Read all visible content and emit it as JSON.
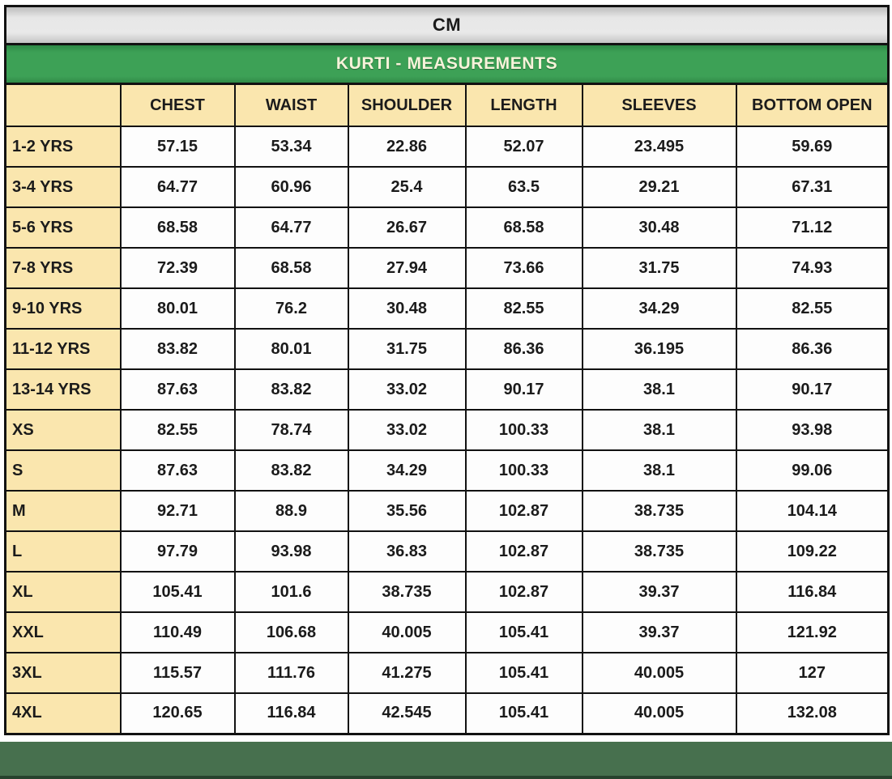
{
  "page": {
    "unit_label": "CM",
    "title": "KURTI - MEASUREMENTS"
  },
  "table": {
    "columns": [
      "",
      "CHEST",
      "WAIST",
      "SHOULDER",
      "LENGTH",
      "SLEEVES",
      "BOTTOM OPEN"
    ],
    "rows": [
      {
        "label": "1-2 YRS",
        "values": [
          "57.15",
          "53.34",
          "22.86",
          "52.07",
          "23.495",
          "59.69"
        ]
      },
      {
        "label": "3-4 YRS",
        "values": [
          "64.77",
          "60.96",
          "25.4",
          "63.5",
          "29.21",
          "67.31"
        ]
      },
      {
        "label": "5-6 YRS",
        "values": [
          "68.58",
          "64.77",
          "26.67",
          "68.58",
          "30.48",
          "71.12"
        ]
      },
      {
        "label": "7-8 YRS",
        "values": [
          "72.39",
          "68.58",
          "27.94",
          "73.66",
          "31.75",
          "74.93"
        ]
      },
      {
        "label": "9-10 YRS",
        "values": [
          "80.01",
          "76.2",
          "30.48",
          "82.55",
          "34.29",
          "82.55"
        ]
      },
      {
        "label": "11-12 YRS",
        "values": [
          "83.82",
          "80.01",
          "31.75",
          "86.36",
          "36.195",
          "86.36"
        ]
      },
      {
        "label": "13-14 YRS",
        "values": [
          "87.63",
          "83.82",
          "33.02",
          "90.17",
          "38.1",
          "90.17"
        ]
      },
      {
        "label": "XS",
        "values": [
          "82.55",
          "78.74",
          "33.02",
          "100.33",
          "38.1",
          "93.98"
        ]
      },
      {
        "label": "S",
        "values": [
          "87.63",
          "83.82",
          "34.29",
          "100.33",
          "38.1",
          "99.06"
        ]
      },
      {
        "label": "M",
        "values": [
          "92.71",
          "88.9",
          "35.56",
          "102.87",
          "38.735",
          "104.14"
        ]
      },
      {
        "label": "L",
        "values": [
          "97.79",
          "93.98",
          "36.83",
          "102.87",
          "38.735",
          "109.22"
        ]
      },
      {
        "label": "XL",
        "values": [
          "105.41",
          "101.6",
          "38.735",
          "102.87",
          "39.37",
          "116.84"
        ]
      },
      {
        "label": "XXL",
        "values": [
          "110.49",
          "106.68",
          "40.005",
          "105.41",
          "39.37",
          "121.92"
        ]
      },
      {
        "label": "3XL",
        "values": [
          "115.57",
          "111.76",
          "41.275",
          "105.41",
          "40.005",
          "127"
        ]
      },
      {
        "label": "4XL",
        "values": [
          "120.65",
          "116.84",
          "42.545",
          "105.41",
          "40.005",
          "132.08"
        ]
      }
    ]
  },
  "colors": {
    "title_green": "#3da156",
    "header_cream": "#fae6ae",
    "unit_bar_gray": "#dedede",
    "footer_green": "#47704e",
    "footer_edge": "#27422d",
    "border_black": "#121212"
  }
}
